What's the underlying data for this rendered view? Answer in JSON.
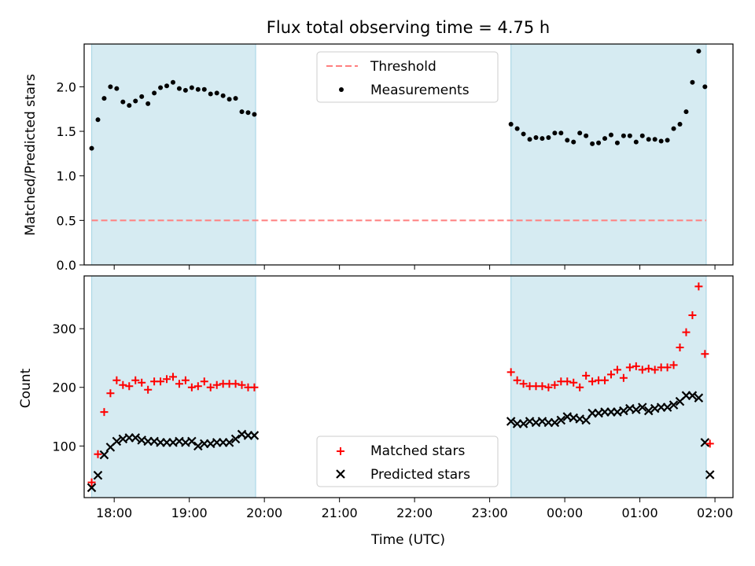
{
  "figure": {
    "title": "Flux total observing time = 4.75 h",
    "xlabel": "Time (UTC)"
  },
  "colors": {
    "shade": "#add8e6",
    "threshold": "#ff7f7f",
    "matched": "#ff0000",
    "predicted": "#000000",
    "measurements": "#000000"
  },
  "x_ticks": [
    {
      "h": 18,
      "label": "18:00"
    },
    {
      "h": 19,
      "label": "19:00"
    },
    {
      "h": 20,
      "label": "20:00"
    },
    {
      "h": 21,
      "label": "21:00"
    },
    {
      "h": 22,
      "label": "22:00"
    },
    {
      "h": 23,
      "label": "23:00"
    },
    {
      "h": 24,
      "label": "00:00"
    },
    {
      "h": 25,
      "label": "01:00"
    },
    {
      "h": 26,
      "label": "02:00"
    }
  ],
  "chart_data": [
    {
      "type": "scatter",
      "title": "Flux total observing time = 4.75 h",
      "ylabel": "Matched/Predicted stars",
      "xlabel": "",
      "ylim": [
        0,
        2.48
      ],
      "y_ticks": [
        "0.0",
        "0.5",
        "1.0",
        "1.5",
        "2.0"
      ],
      "legend": {
        "placement": "top-center",
        "entries": [
          "Threshold",
          "Measurements"
        ]
      },
      "shaded_intervals": [
        [
          "17:42",
          "19:53"
        ],
        [
          "23:17",
          "01:53"
        ]
      ],
      "threshold": {
        "name": "Threshold",
        "y": 0.5,
        "x_range": [
          "17:42",
          "01:53"
        ]
      },
      "series": [
        {
          "name": "Measurements",
          "x": [
            "17:42",
            "17:47",
            "17:52",
            "17:57",
            "18:02",
            "18:07",
            "18:12",
            "18:17",
            "18:22",
            "18:27",
            "18:32",
            "18:37",
            "18:42",
            "18:47",
            "18:52",
            "18:57",
            "19:02",
            "19:07",
            "19:12",
            "19:17",
            "19:22",
            "19:27",
            "19:32",
            "19:37",
            "19:42",
            "19:47",
            "19:52",
            "23:17",
            "23:22",
            "23:27",
            "23:32",
            "23:37",
            "23:42",
            "23:47",
            "23:52",
            "23:57",
            "00:02",
            "00:07",
            "00:12",
            "00:17",
            "00:22",
            "00:27",
            "00:32",
            "00:37",
            "00:42",
            "00:47",
            "00:52",
            "00:57",
            "01:02",
            "01:07",
            "01:12",
            "01:17",
            "01:22",
            "01:27",
            "01:32",
            "01:37",
            "01:42",
            "01:47",
            "01:52"
          ],
          "y": [
            1.31,
            1.63,
            1.87,
            2.0,
            1.98,
            1.83,
            1.79,
            1.84,
            1.89,
            1.81,
            1.93,
            1.99,
            2.01,
            2.05,
            1.98,
            1.96,
            1.99,
            1.97,
            1.97,
            1.92,
            1.93,
            1.9,
            1.86,
            1.87,
            1.72,
            1.71,
            1.69,
            1.58,
            1.53,
            1.47,
            1.41,
            1.43,
            1.42,
            1.43,
            1.48,
            1.48,
            1.4,
            1.38,
            1.48,
            1.45,
            1.36,
            1.37,
            1.42,
            1.46,
            1.37,
            1.45,
            1.45,
            1.38,
            1.45,
            1.41,
            1.41,
            1.39,
            1.4,
            1.53,
            1.58,
            1.72,
            2.05,
            2.4,
            2.0
          ]
        }
      ]
    },
    {
      "type": "scatter",
      "ylabel": "Count",
      "xlabel": "Time (UTC)",
      "ylim": [
        12,
        390
      ],
      "y_ticks": [
        "100",
        "200",
        "300"
      ],
      "legend": {
        "placement": "bottom-center",
        "entries": [
          "Matched stars",
          "Predicted stars"
        ]
      },
      "shaded_intervals": [
        [
          "17:42",
          "19:53"
        ],
        [
          "23:17",
          "01:53"
        ]
      ],
      "x": [
        "17:42",
        "17:47",
        "17:52",
        "17:57",
        "18:02",
        "18:07",
        "18:12",
        "18:17",
        "18:22",
        "18:27",
        "18:32",
        "18:37",
        "18:42",
        "18:47",
        "18:52",
        "18:57",
        "19:02",
        "19:07",
        "19:12",
        "19:17",
        "19:22",
        "19:27",
        "19:32",
        "19:37",
        "19:42",
        "19:47",
        "19:52",
        "23:17",
        "23:22",
        "23:27",
        "23:32",
        "23:37",
        "23:42",
        "23:47",
        "23:52",
        "23:57",
        "00:02",
        "00:07",
        "00:12",
        "00:17",
        "00:22",
        "00:27",
        "00:32",
        "00:37",
        "00:42",
        "00:47",
        "00:52",
        "00:57",
        "01:02",
        "01:07",
        "01:12",
        "01:17",
        "01:22",
        "01:27",
        "01:32",
        "01:37",
        "01:42",
        "01:47",
        "01:52"
      ],
      "series": [
        {
          "name": "Matched stars",
          "marker": "plus",
          "values": [
            38,
            86,
            158,
            190,
            212,
            204,
            202,
            212,
            208,
            196,
            210,
            210,
            214,
            218,
            206,
            212,
            200,
            202,
            210,
            200,
            204,
            206,
            206,
            206,
            204,
            200,
            200,
            226,
            212,
            206,
            202,
            202,
            202,
            200,
            204,
            210,
            210,
            208,
            200,
            220,
            210,
            212,
            212,
            222,
            230,
            216,
            234,
            236,
            230,
            232,
            230,
            234,
            234,
            238,
            268,
            294,
            323,
            372,
            257
          ]
        },
        {
          "name": "Predicted stars",
          "marker": "x",
          "values": [
            29,
            50,
            85,
            98,
            108,
            112,
            114,
            114,
            110,
            108,
            108,
            106,
            106,
            106,
            108,
            106,
            108,
            100,
            104,
            104,
            106,
            106,
            106,
            112,
            120,
            118,
            118,
            142,
            138,
            138,
            142,
            140,
            142,
            140,
            140,
            144,
            150,
            148,
            146,
            144,
            156,
            156,
            158,
            158,
            158,
            160,
            164,
            162,
            166,
            160,
            164,
            166,
            166,
            170,
            176,
            186,
            186,
            182,
            106
          ]
        }
      ],
      "extra_points": [
        {
          "name": "Matched stars",
          "x": "01:56",
          "y": 104
        },
        {
          "name": "Predicted stars",
          "x": "01:56",
          "y": 51
        }
      ]
    }
  ]
}
